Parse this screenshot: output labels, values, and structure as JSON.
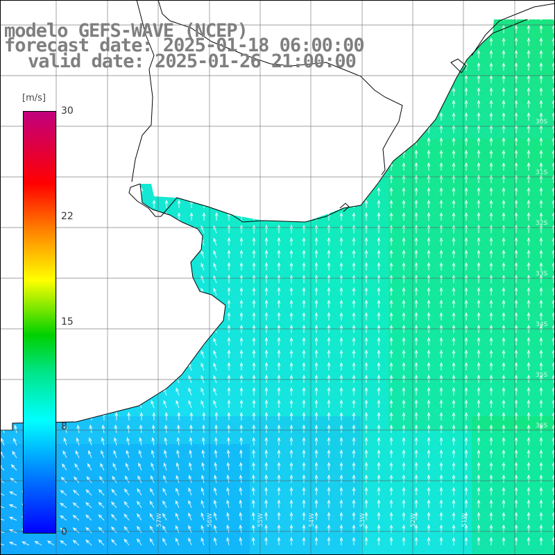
{
  "title": {
    "line1": "modelo GEFS-WAVE (NCEP)",
    "line2": "forecast date: 2025-01-18 06:00:00",
    "line3": "valid date: 2025-01-26 21:00:00"
  },
  "colorbar": {
    "units": "[m/s]",
    "vmin": 0,
    "vmax": 30,
    "ticks": [
      {
        "label": "30",
        "value": 30
      },
      {
        "label": "22",
        "value": 22.5
      },
      {
        "label": "15",
        "value": 15
      },
      {
        "label": "8",
        "value": 7.5
      },
      {
        "label": "0",
        "value": 0
      }
    ],
    "colors": [
      "#0000ff",
      "#0080ff",
      "#00ffff",
      "#00e58a",
      "#00d000",
      "#ffff00",
      "#ff8000",
      "#ff0000",
      "#c0007f"
    ]
  },
  "map": {
    "field": "wind speed",
    "longitude_labels": [
      "57W",
      "56W",
      "55W",
      "54W",
      "53W",
      "52W",
      "51W"
    ],
    "latitude_labels": [
      "30S",
      "31S",
      "32S",
      "33S",
      "34S",
      "35S",
      "36S"
    ]
  }
}
